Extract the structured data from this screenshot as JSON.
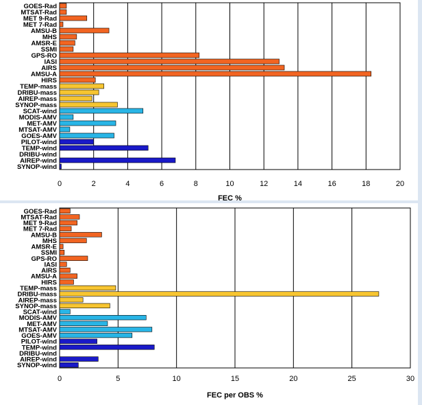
{
  "chart_data": [
    {
      "type": "bar",
      "orientation": "horizontal",
      "title": "",
      "xlabel": "FEC %",
      "ylabel": "",
      "xlim": [
        0,
        20
      ],
      "xticks": [
        "0",
        "2",
        "4",
        "6",
        "8",
        "10",
        "12",
        "14",
        "16",
        "18",
        "20"
      ],
      "grid": "vertical",
      "categories": [
        "GOES-Rad",
        "MTSAT-Rad",
        "MET 9-Rad",
        "MET 7-Rad",
        "AMSU-B",
        "MHS",
        "AMSR-E",
        "SSMI",
        "GPS-RO",
        "IASI",
        "AIRS",
        "AMSU-A",
        "HIRS",
        "TEMP-mass",
        "DRIBU-mass",
        "AIREP-mass",
        "SYNOP-mass",
        "SCAT-wind",
        "MODIS-AMV",
        "MET-AMV",
        "MTSAT-AMV",
        "GOES-AMV",
        "PILOT-wind",
        "TEMP-wind",
        "DRIBU-wind",
        "AIREP-wind",
        "SYNOP-wind"
      ],
      "values": [
        0.4,
        0.4,
        1.6,
        0.2,
        2.9,
        1.0,
        0.9,
        0.8,
        8.2,
        12.9,
        13.2,
        18.3,
        2.1,
        2.6,
        2.3,
        1.9,
        3.4,
        4.9,
        0.8,
        3.3,
        0.6,
        3.2,
        2.0,
        5.2,
        0.0,
        6.8,
        0.1
      ],
      "colors": [
        "#f26522",
        "#f26522",
        "#f26522",
        "#f26522",
        "#f26522",
        "#f26522",
        "#f26522",
        "#f26522",
        "#f26522",
        "#f26522",
        "#f26522",
        "#f26522",
        "#f26522",
        "#f7c531",
        "#f7c531",
        "#f7c531",
        "#f7c531",
        "#29b5e6",
        "#29b5e6",
        "#29b5e6",
        "#29b5e6",
        "#29b5e6",
        "#1a1ac8",
        "#1a1ac8",
        "#1a1ac8",
        "#1a1ac8",
        "#1a1ac8"
      ]
    },
    {
      "type": "bar",
      "orientation": "horizontal",
      "title": "",
      "xlabel": "FEC per OBS %",
      "ylabel": "",
      "xlim": [
        0,
        30
      ],
      "xticks": [
        "0",
        "5",
        "10",
        "15",
        "20",
        "25",
        "30"
      ],
      "grid": "vertical",
      "categories": [
        "GOES-Rad",
        "MTSAT-Rad",
        "MET 9-Rad",
        "MET 7-Rad",
        "AMSU-B",
        "MHS",
        "AMSR-E",
        "SSMI",
        "GPS-RO",
        "IASI",
        "AIRS",
        "AMSU-A",
        "HIRS",
        "TEMP-mass",
        "DRIBU-mass",
        "AIREP-mass",
        "SYNOP-mass",
        "SCAT-wind",
        "MODIS-AMV",
        "MET-AMV",
        "MTSAT-AMV",
        "GOES-AMV",
        "PILOT-wind",
        "TEMP-wind",
        "DRIBU-wind",
        "AIREP-wind",
        "SYNOP-wind"
      ],
      "values": [
        0.9,
        1.7,
        1.5,
        1.0,
        3.6,
        2.3,
        0.3,
        0.4,
        2.4,
        0.6,
        0.9,
        1.5,
        1.2,
        4.8,
        27.3,
        2.0,
        4.3,
        0.9,
        7.4,
        4.1,
        7.9,
        6.2,
        3.2,
        8.1,
        0.0,
        3.3,
        1.6
      ],
      "colors": [
        "#f26522",
        "#f26522",
        "#f26522",
        "#f26522",
        "#f26522",
        "#f26522",
        "#f26522",
        "#f26522",
        "#f26522",
        "#f26522",
        "#f26522",
        "#f26522",
        "#f26522",
        "#f7c531",
        "#f7c531",
        "#f7c531",
        "#f7c531",
        "#29b5e6",
        "#29b5e6",
        "#29b5e6",
        "#29b5e6",
        "#29b5e6",
        "#1a1ac8",
        "#1a1ac8",
        "#1a1ac8",
        "#1a1ac8",
        "#1a1ac8"
      ]
    }
  ]
}
